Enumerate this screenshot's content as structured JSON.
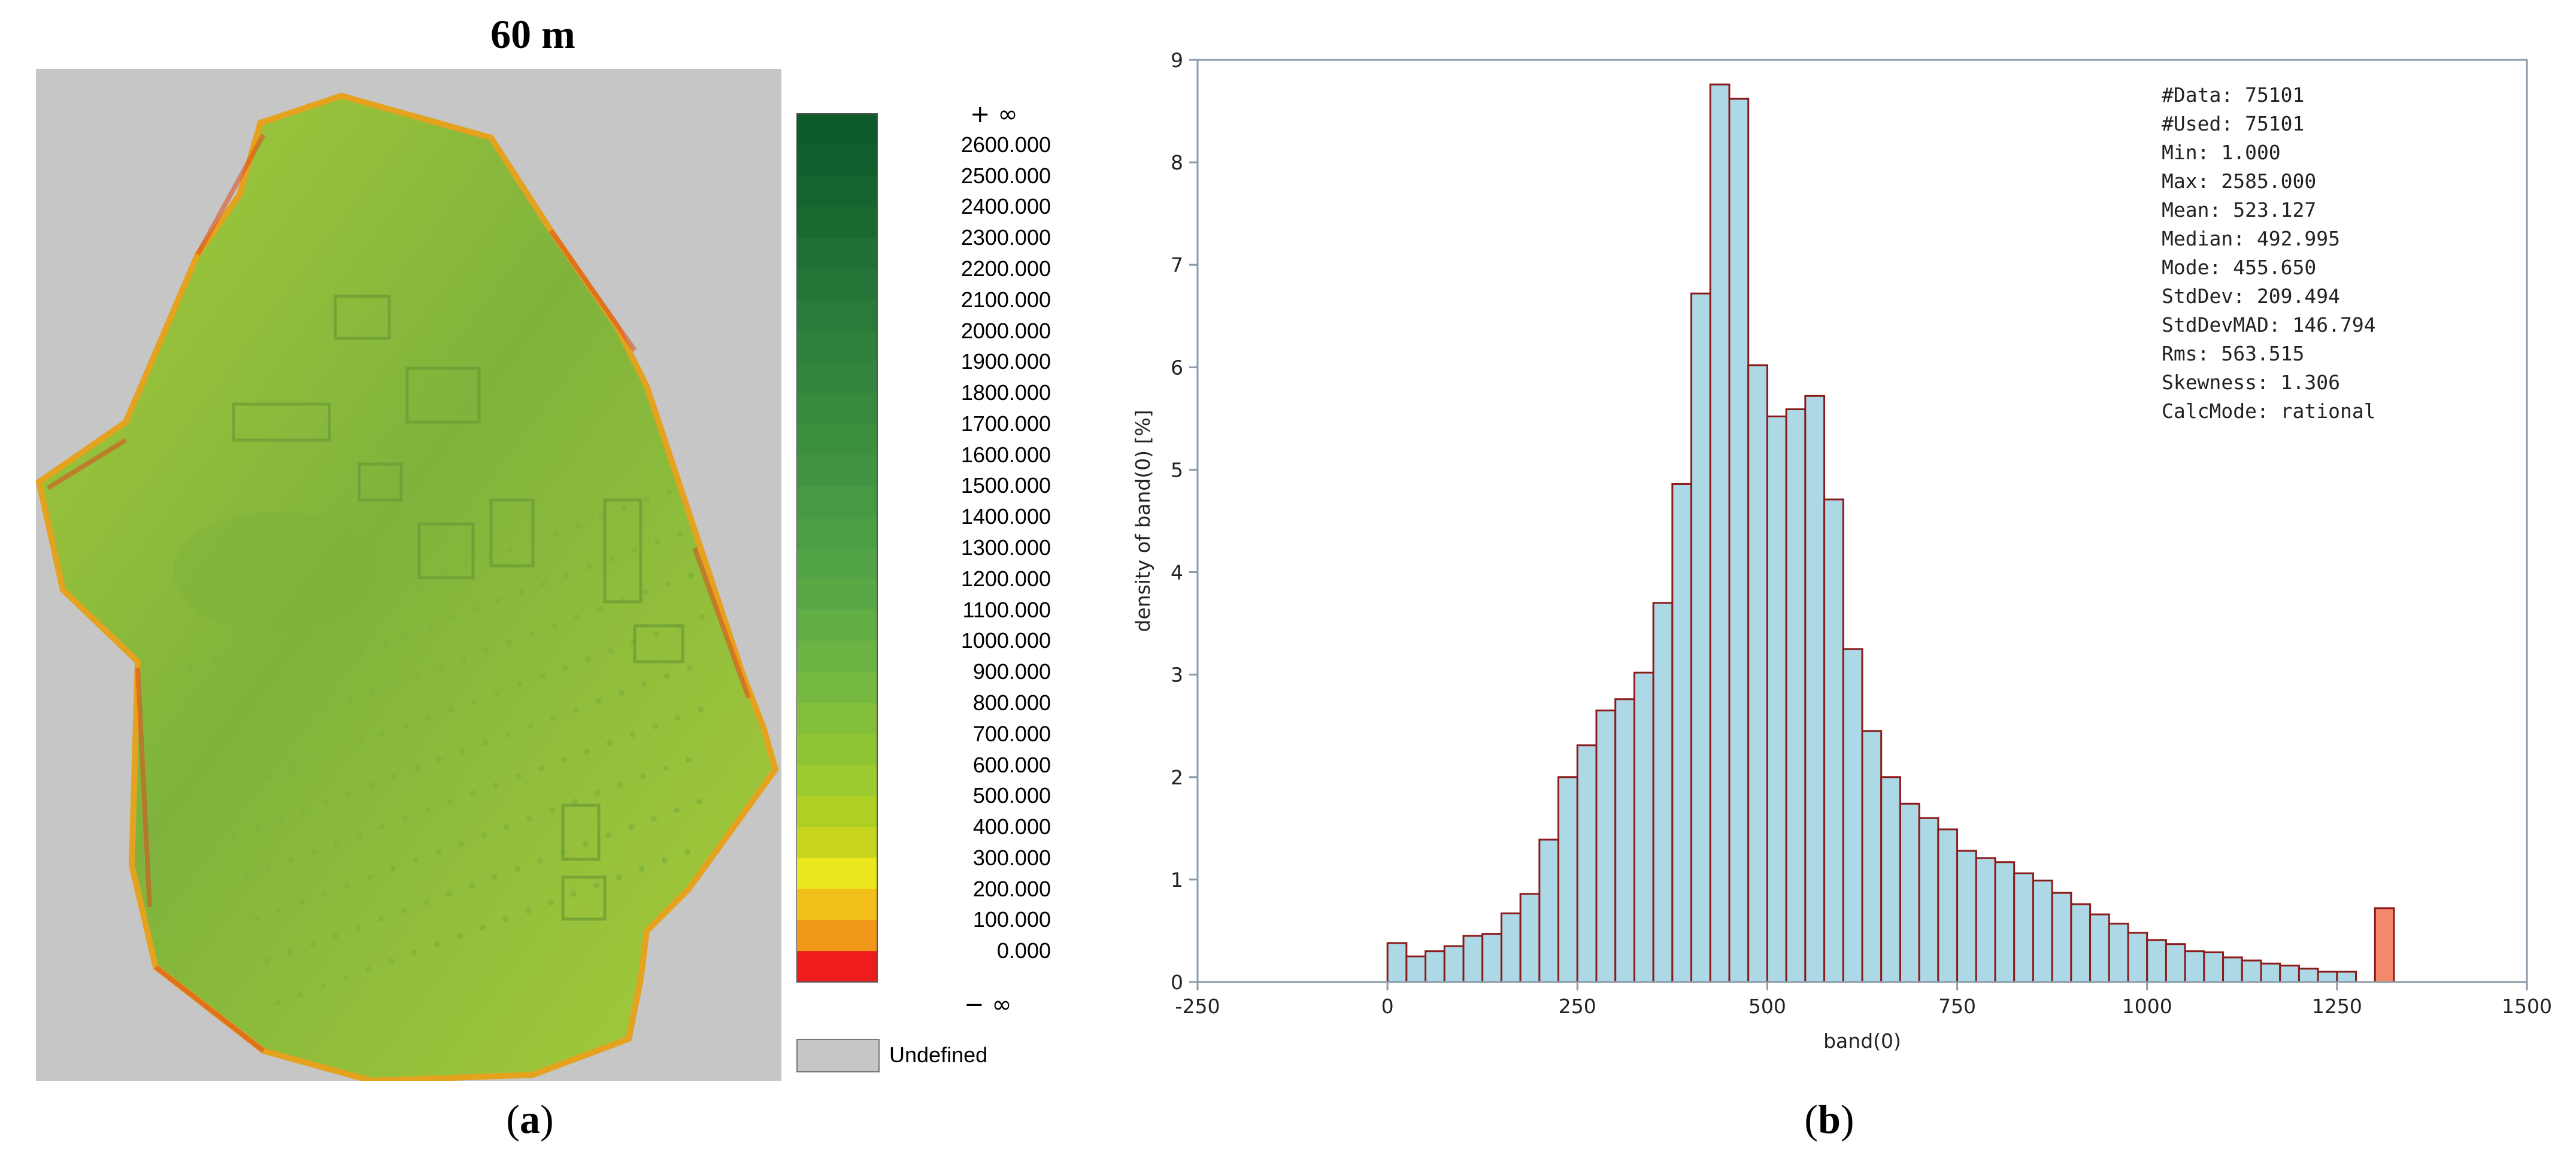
{
  "panel_a": {
    "title": "60 m",
    "caption_letter": "a",
    "legend": {
      "top_label": "+ ∞",
      "bottom_label": "− ∞",
      "undefined_label": "Undefined",
      "undefined_color": "#c6c6c6",
      "labels": [
        "2600.000",
        "2500.000",
        "2400.000",
        "2300.000",
        "2200.000",
        "2100.000",
        "2000.000",
        "1900.000",
        "1800.000",
        "1700.000",
        "1600.000",
        "1500.000",
        "1400.000",
        "1300.000",
        "1200.000",
        "1100.000",
        "1000.000",
        "900.000",
        "800.000",
        "700.000",
        "600.000",
        "500.000",
        "400.000",
        "300.000",
        "200.000",
        "100.000",
        "0.000"
      ],
      "colors": [
        "#0d5a2a",
        "#105f2c",
        "#14642e",
        "#196a31",
        "#1e7034",
        "#247537",
        "#297b39",
        "#2e803b",
        "#33853d",
        "#388a3e",
        "#3d8f40",
        "#429442",
        "#479944",
        "#4c9e45",
        "#52a346",
        "#59a846",
        "#61ae45",
        "#6bb343",
        "#76b940",
        "#82bf3b",
        "#8ec535",
        "#9ccb2f",
        "#aed024",
        "#c8d51f",
        "#ece71c",
        "#f3c019",
        "#f1971a",
        "#ee1c1c"
      ]
    },
    "map_colors": {
      "background": "#c6c6c6",
      "fill": "#a8cc3a",
      "dark": "#7fb33c",
      "edge": "#e4a21f",
      "edge_red": "#dd4a1e"
    }
  },
  "panel_b": {
    "caption_letter": "b",
    "stats": [
      "#Data: 75101",
      "#Used: 75101",
      "Min: 1.000",
      "Max: 2585.000",
      "Mean: 523.127",
      "Median: 492.995",
      "Mode: 455.650",
      "StdDev: 209.494",
      "StdDevMAD: 146.794",
      "Rms: 563.515",
      "Skewness: 1.306",
      "CalcMode: rational"
    ]
  },
  "chart_data": {
    "type": "bar",
    "title": "",
    "xlabel": "band(0)",
    "ylabel": "density of band(0) [%]",
    "xlim": [
      -250,
      1500
    ],
    "ylim": [
      0,
      9
    ],
    "xticks": [
      -250,
      0,
      250,
      500,
      750,
      1000,
      1250,
      1500
    ],
    "yticks": [
      0,
      1,
      2,
      3,
      4,
      5,
      6,
      7,
      8,
      9
    ],
    "bin_width": 25,
    "bin_start": 0,
    "values": [
      0.38,
      0.25,
      0.3,
      0.35,
      0.45,
      0.47,
      0.67,
      0.86,
      1.39,
      2.0,
      2.31,
      2.65,
      2.76,
      3.02,
      3.7,
      4.86,
      6.72,
      8.76,
      8.62,
      6.02,
      5.52,
      5.59,
      5.72,
      4.71,
      3.25,
      2.45,
      2.0,
      1.74,
      1.6,
      1.49,
      1.28,
      1.21,
      1.17,
      1.06,
      0.99,
      0.87,
      0.76,
      0.66,
      0.57,
      0.48,
      0.41,
      0.37,
      0.3,
      0.29,
      0.24,
      0.21,
      0.18,
      0.16,
      0.13,
      0.1,
      0.1
    ],
    "overflow_bin": {
      "x": 1300,
      "value": 0.72
    },
    "colors": {
      "bar_fill": "#add8e6",
      "bar_edge": "#8b1a1a",
      "overflow_fill": "#f4896b",
      "axis": "#8a9aa8"
    }
  }
}
